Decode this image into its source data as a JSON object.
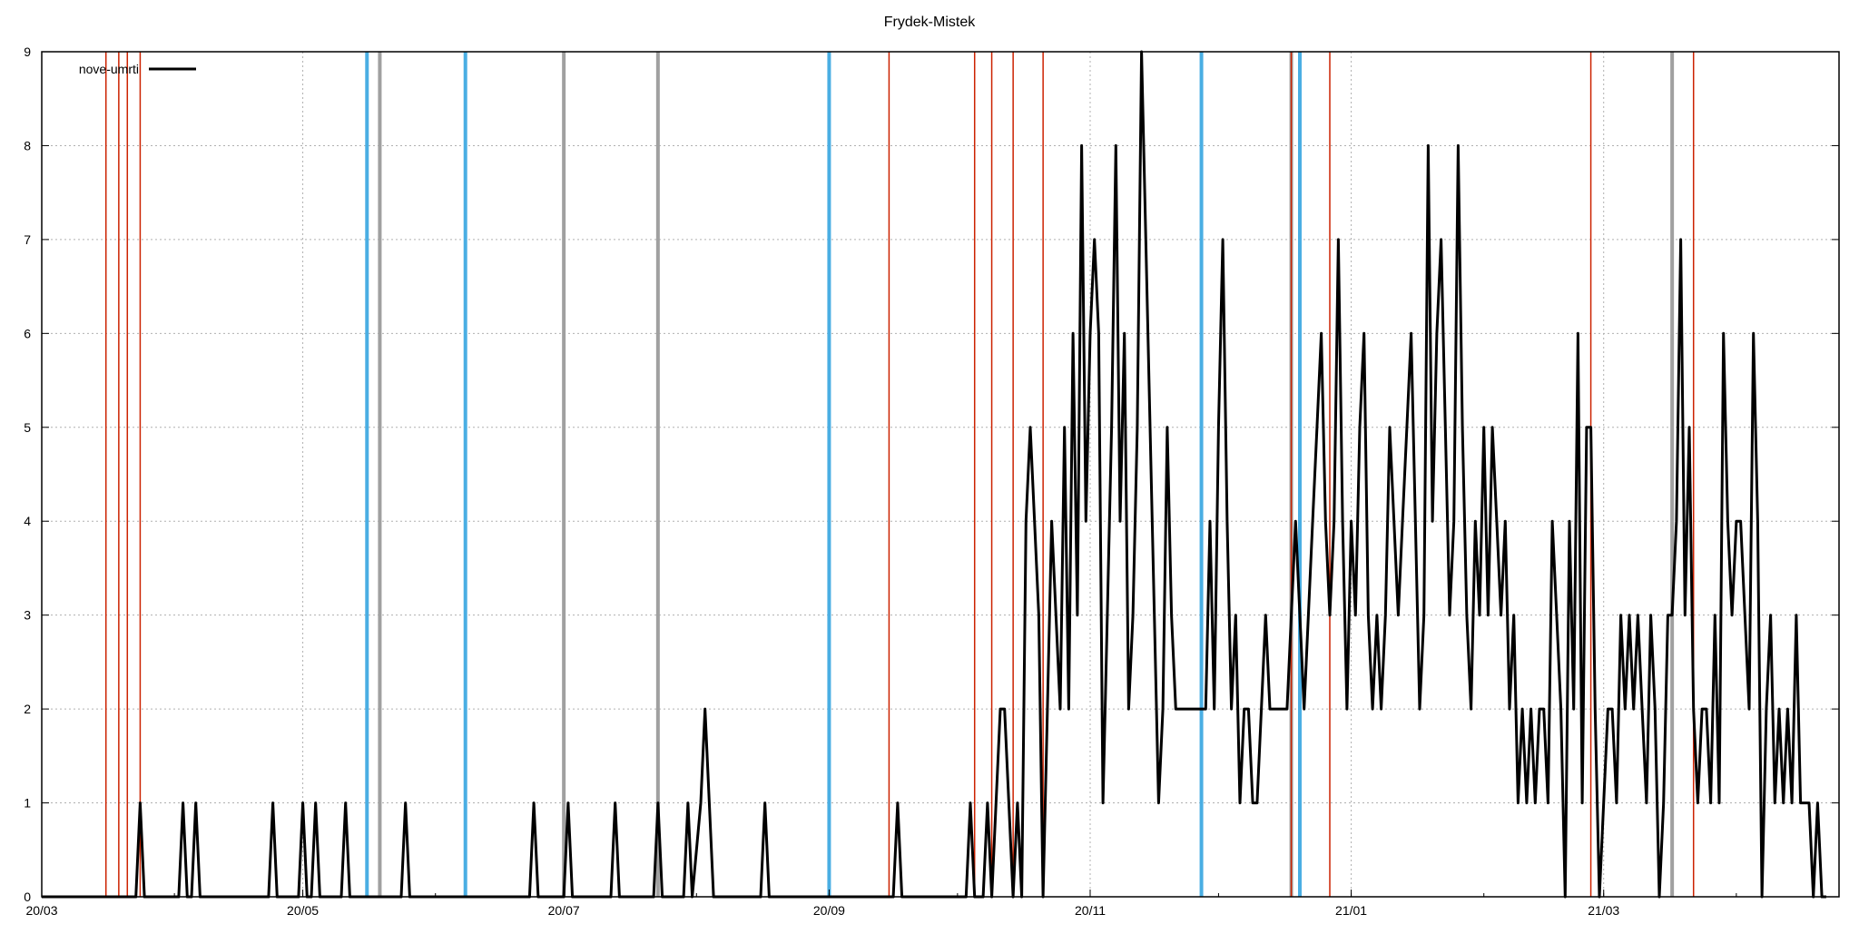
{
  "chart_data": {
    "type": "line",
    "title": "Frydek-Mistek",
    "xlabel": "",
    "ylabel": "",
    "xlim": [
      "2020-03-01",
      "2021-04-25"
    ],
    "ylim": [
      0,
      9
    ],
    "x_ticks": [
      {
        "date": "2020-03-01",
        "label": "20/03"
      },
      {
        "date": "2020-05-01",
        "label": "20/05"
      },
      {
        "date": "2020-07-01",
        "label": "20/07"
      },
      {
        "date": "2020-09-01",
        "label": "20/09"
      },
      {
        "date": "2020-11-01",
        "label": "20/11"
      },
      {
        "date": "2021-01-01",
        "label": "21/01"
      },
      {
        "date": "2021-03-01",
        "label": "21/03"
      }
    ],
    "y_ticks": [
      0,
      1,
      2,
      3,
      4,
      5,
      6,
      7,
      8,
      9
    ],
    "grid": true,
    "legend": {
      "position": "top-left"
    },
    "colors": {
      "series": "#000000",
      "red_markers": "#cc2200",
      "blue_markers": "#4aaee3",
      "gray_markers": "#a0a0a0",
      "grid": "#b0b0b0"
    },
    "series": [
      {
        "name": "nove-umrti",
        "points": [
          [
            "2020-03-01",
            0
          ],
          [
            "2020-03-23",
            0
          ],
          [
            "2020-03-24",
            1
          ],
          [
            "2020-03-25",
            0
          ],
          [
            "2020-04-02",
            0
          ],
          [
            "2020-04-03",
            1
          ],
          [
            "2020-04-04",
            0
          ],
          [
            "2020-04-05",
            0
          ],
          [
            "2020-04-06",
            1
          ],
          [
            "2020-04-07",
            0
          ],
          [
            "2020-04-23",
            0
          ],
          [
            "2020-04-24",
            1
          ],
          [
            "2020-04-25",
            0
          ],
          [
            "2020-04-30",
            0
          ],
          [
            "2020-05-01",
            1
          ],
          [
            "2020-05-02",
            0
          ],
          [
            "2020-05-03",
            0
          ],
          [
            "2020-05-04",
            1
          ],
          [
            "2020-05-05",
            0
          ],
          [
            "2020-05-10",
            0
          ],
          [
            "2020-05-11",
            1
          ],
          [
            "2020-05-12",
            0
          ],
          [
            "2020-05-24",
            0
          ],
          [
            "2020-05-25",
            1
          ],
          [
            "2020-05-26",
            0
          ],
          [
            "2020-06-23",
            0
          ],
          [
            "2020-06-24",
            1
          ],
          [
            "2020-06-25",
            0
          ],
          [
            "2020-07-01",
            0
          ],
          [
            "2020-07-02",
            1
          ],
          [
            "2020-07-03",
            0
          ],
          [
            "2020-07-12",
            0
          ],
          [
            "2020-07-13",
            1
          ],
          [
            "2020-07-14",
            0
          ],
          [
            "2020-07-22",
            0
          ],
          [
            "2020-07-23",
            1
          ],
          [
            "2020-07-24",
            0
          ],
          [
            "2020-07-29",
            0
          ],
          [
            "2020-07-30",
            1
          ],
          [
            "2020-07-31",
            0
          ],
          [
            "2020-08-02",
            1
          ],
          [
            "2020-08-03",
            2
          ],
          [
            "2020-08-04",
            1
          ],
          [
            "2020-08-05",
            0
          ],
          [
            "2020-08-16",
            0
          ],
          [
            "2020-08-17",
            1
          ],
          [
            "2020-08-18",
            0
          ],
          [
            "2020-09-16",
            0
          ],
          [
            "2020-09-17",
            1
          ],
          [
            "2020-09-18",
            0
          ],
          [
            "2020-10-03",
            0
          ],
          [
            "2020-10-04",
            1
          ],
          [
            "2020-10-05",
            0
          ],
          [
            "2020-10-07",
            0
          ],
          [
            "2020-10-08",
            1
          ],
          [
            "2020-10-09",
            0
          ],
          [
            "2020-10-10",
            1
          ],
          [
            "2020-10-11",
            2
          ],
          [
            "2020-10-12",
            2
          ],
          [
            "2020-10-13",
            1
          ],
          [
            "2020-10-14",
            0
          ],
          [
            "2020-10-15",
            1
          ],
          [
            "2020-10-16",
            0
          ],
          [
            "2020-10-17",
            4
          ],
          [
            "2020-10-18",
            5
          ],
          [
            "2020-10-19",
            4
          ],
          [
            "2020-10-20",
            3
          ],
          [
            "2020-10-21",
            0
          ],
          [
            "2020-10-22",
            2
          ],
          [
            "2020-10-23",
            4
          ],
          [
            "2020-10-24",
            3
          ],
          [
            "2020-10-25",
            2
          ],
          [
            "2020-10-26",
            5
          ],
          [
            "2020-10-27",
            2
          ],
          [
            "2020-10-28",
            6
          ],
          [
            "2020-10-29",
            3
          ],
          [
            "2020-10-30",
            8
          ],
          [
            "2020-10-31",
            4
          ],
          [
            "2020-11-01",
            6
          ],
          [
            "2020-11-02",
            7
          ],
          [
            "2020-11-03",
            6
          ],
          [
            "2020-11-04",
            1
          ],
          [
            "2020-11-05",
            3
          ],
          [
            "2020-11-06",
            5
          ],
          [
            "2020-11-07",
            8
          ],
          [
            "2020-11-08",
            4
          ],
          [
            "2020-11-09",
            6
          ],
          [
            "2020-11-10",
            2
          ],
          [
            "2020-11-11",
            3
          ],
          [
            "2020-11-12",
            5
          ],
          [
            "2020-11-13",
            9
          ],
          [
            "2020-11-14",
            7
          ],
          [
            "2020-11-15",
            5
          ],
          [
            "2020-11-16",
            3
          ],
          [
            "2020-11-17",
            1
          ],
          [
            "2020-11-18",
            2
          ],
          [
            "2020-11-19",
            5
          ],
          [
            "2020-11-20",
            3
          ],
          [
            "2020-11-21",
            2
          ],
          [
            "2020-11-28",
            2
          ],
          [
            "2020-11-29",
            4
          ],
          [
            "2020-11-30",
            2
          ],
          [
            "2020-12-01",
            5
          ],
          [
            "2020-12-02",
            7
          ],
          [
            "2020-12-03",
            4
          ],
          [
            "2020-12-04",
            2
          ],
          [
            "2020-12-05",
            3
          ],
          [
            "2020-12-06",
            1
          ],
          [
            "2020-12-07",
            2
          ],
          [
            "2020-12-08",
            2
          ],
          [
            "2020-12-09",
            1
          ],
          [
            "2020-12-10",
            1
          ],
          [
            "2020-12-11",
            2
          ],
          [
            "2020-12-12",
            3
          ],
          [
            "2020-12-13",
            2
          ],
          [
            "2020-12-17",
            2
          ],
          [
            "2020-12-18",
            3
          ],
          [
            "2020-12-19",
            4
          ],
          [
            "2020-12-20",
            3
          ],
          [
            "2020-12-21",
            2
          ],
          [
            "2020-12-22",
            3
          ],
          [
            "2020-12-23",
            4
          ],
          [
            "2020-12-24",
            5
          ],
          [
            "2020-12-25",
            6
          ],
          [
            "2020-12-26",
            4
          ],
          [
            "2020-12-27",
            3
          ],
          [
            "2020-12-28",
            4
          ],
          [
            "2020-12-29",
            7
          ],
          [
            "2020-12-30",
            4
          ],
          [
            "2020-12-31",
            2
          ],
          [
            "2021-01-01",
            4
          ],
          [
            "2021-01-02",
            3
          ],
          [
            "2021-01-03",
            5
          ],
          [
            "2021-01-04",
            6
          ],
          [
            "2021-01-05",
            3
          ],
          [
            "2021-01-06",
            2
          ],
          [
            "2021-01-07",
            3
          ],
          [
            "2021-01-08",
            2
          ],
          [
            "2021-01-09",
            3
          ],
          [
            "2021-01-10",
            5
          ],
          [
            "2021-01-11",
            4
          ],
          [
            "2021-01-12",
            3
          ],
          [
            "2021-01-13",
            4
          ],
          [
            "2021-01-14",
            5
          ],
          [
            "2021-01-15",
            6
          ],
          [
            "2021-01-16",
            4
          ],
          [
            "2021-01-17",
            2
          ],
          [
            "2021-01-18",
            3
          ],
          [
            "2021-01-19",
            8
          ],
          [
            "2021-01-20",
            4
          ],
          [
            "2021-01-21",
            6
          ],
          [
            "2021-01-22",
            7
          ],
          [
            "2021-01-23",
            5
          ],
          [
            "2021-01-24",
            3
          ],
          [
            "2021-01-25",
            4
          ],
          [
            "2021-01-26",
            8
          ],
          [
            "2021-01-27",
            5
          ],
          [
            "2021-01-28",
            3
          ],
          [
            "2021-01-29",
            2
          ],
          [
            "2021-01-30",
            4
          ],
          [
            "2021-01-31",
            3
          ],
          [
            "2021-02-01",
            5
          ],
          [
            "2021-02-02",
            3
          ],
          [
            "2021-02-03",
            5
          ],
          [
            "2021-02-04",
            4
          ],
          [
            "2021-02-05",
            3
          ],
          [
            "2021-02-06",
            4
          ],
          [
            "2021-02-07",
            2
          ],
          [
            "2021-02-08",
            3
          ],
          [
            "2021-02-09",
            1
          ],
          [
            "2021-02-10",
            2
          ],
          [
            "2021-02-11",
            1
          ],
          [
            "2021-02-12",
            2
          ],
          [
            "2021-02-13",
            1
          ],
          [
            "2021-02-14",
            2
          ],
          [
            "2021-02-15",
            2
          ],
          [
            "2021-02-16",
            1
          ],
          [
            "2021-02-17",
            4
          ],
          [
            "2021-02-18",
            3
          ],
          [
            "2021-02-19",
            2
          ],
          [
            "2021-02-20",
            0
          ],
          [
            "2021-02-21",
            4
          ],
          [
            "2021-02-22",
            2
          ],
          [
            "2021-02-23",
            6
          ],
          [
            "2021-02-24",
            1
          ],
          [
            "2021-02-25",
            5
          ],
          [
            "2021-02-26",
            5
          ],
          [
            "2021-02-27",
            2
          ],
          [
            "2021-02-28",
            0
          ],
          [
            "2021-03-01",
            1
          ],
          [
            "2021-03-02",
            2
          ],
          [
            "2021-03-03",
            2
          ],
          [
            "2021-03-04",
            1
          ],
          [
            "2021-03-05",
            3
          ],
          [
            "2021-03-06",
            2
          ],
          [
            "2021-03-07",
            3
          ],
          [
            "2021-03-08",
            2
          ],
          [
            "2021-03-09",
            3
          ],
          [
            "2021-03-10",
            2
          ],
          [
            "2021-03-11",
            1
          ],
          [
            "2021-03-12",
            3
          ],
          [
            "2021-03-13",
            2
          ],
          [
            "2021-03-14",
            0
          ],
          [
            "2021-03-15",
            1
          ],
          [
            "2021-03-16",
            3
          ],
          [
            "2021-03-17",
            3
          ],
          [
            "2021-03-18",
            4
          ],
          [
            "2021-03-19",
            7
          ],
          [
            "2021-03-20",
            3
          ],
          [
            "2021-03-21",
            5
          ],
          [
            "2021-03-22",
            2
          ],
          [
            "2021-03-23",
            1
          ],
          [
            "2021-03-24",
            2
          ],
          [
            "2021-03-25",
            2
          ],
          [
            "2021-03-26",
            1
          ],
          [
            "2021-03-27",
            3
          ],
          [
            "2021-03-28",
            1
          ],
          [
            "2021-03-29",
            6
          ],
          [
            "2021-03-30",
            4
          ],
          [
            "2021-03-31",
            3
          ],
          [
            "2021-04-01",
            4
          ],
          [
            "2021-04-02",
            4
          ],
          [
            "2021-04-03",
            3
          ],
          [
            "2021-04-04",
            2
          ],
          [
            "2021-04-05",
            6
          ],
          [
            "2021-04-06",
            4
          ],
          [
            "2021-04-07",
            0
          ],
          [
            "2021-04-08",
            2
          ],
          [
            "2021-04-09",
            3
          ],
          [
            "2021-04-10",
            1
          ],
          [
            "2021-04-11",
            2
          ],
          [
            "2021-04-12",
            1
          ],
          [
            "2021-04-13",
            2
          ],
          [
            "2021-04-14",
            1
          ],
          [
            "2021-04-15",
            3
          ],
          [
            "2021-04-16",
            1
          ],
          [
            "2021-04-17",
            1
          ],
          [
            "2021-04-18",
            1
          ],
          [
            "2021-04-19",
            0
          ],
          [
            "2021-04-20",
            1
          ],
          [
            "2021-04-21",
            0
          ],
          [
            "2021-04-22",
            0
          ]
        ]
      }
    ],
    "markers": {
      "red": [
        "2020-03-16",
        "2020-03-19",
        "2020-03-21",
        "2020-03-24",
        "2020-09-15",
        "2020-10-05",
        "2020-10-09",
        "2020-10-14",
        "2020-10-21",
        "2020-12-18",
        "2020-12-27",
        "2021-02-26",
        "2021-03-22"
      ],
      "blue": [
        "2020-05-16",
        "2020-06-08",
        "2020-09-01",
        "2020-11-27",
        "2020-12-20"
      ],
      "gray": [
        "2020-05-19",
        "2020-07-01",
        "2020-07-23",
        "2020-12-18",
        "2021-03-17"
      ]
    }
  }
}
